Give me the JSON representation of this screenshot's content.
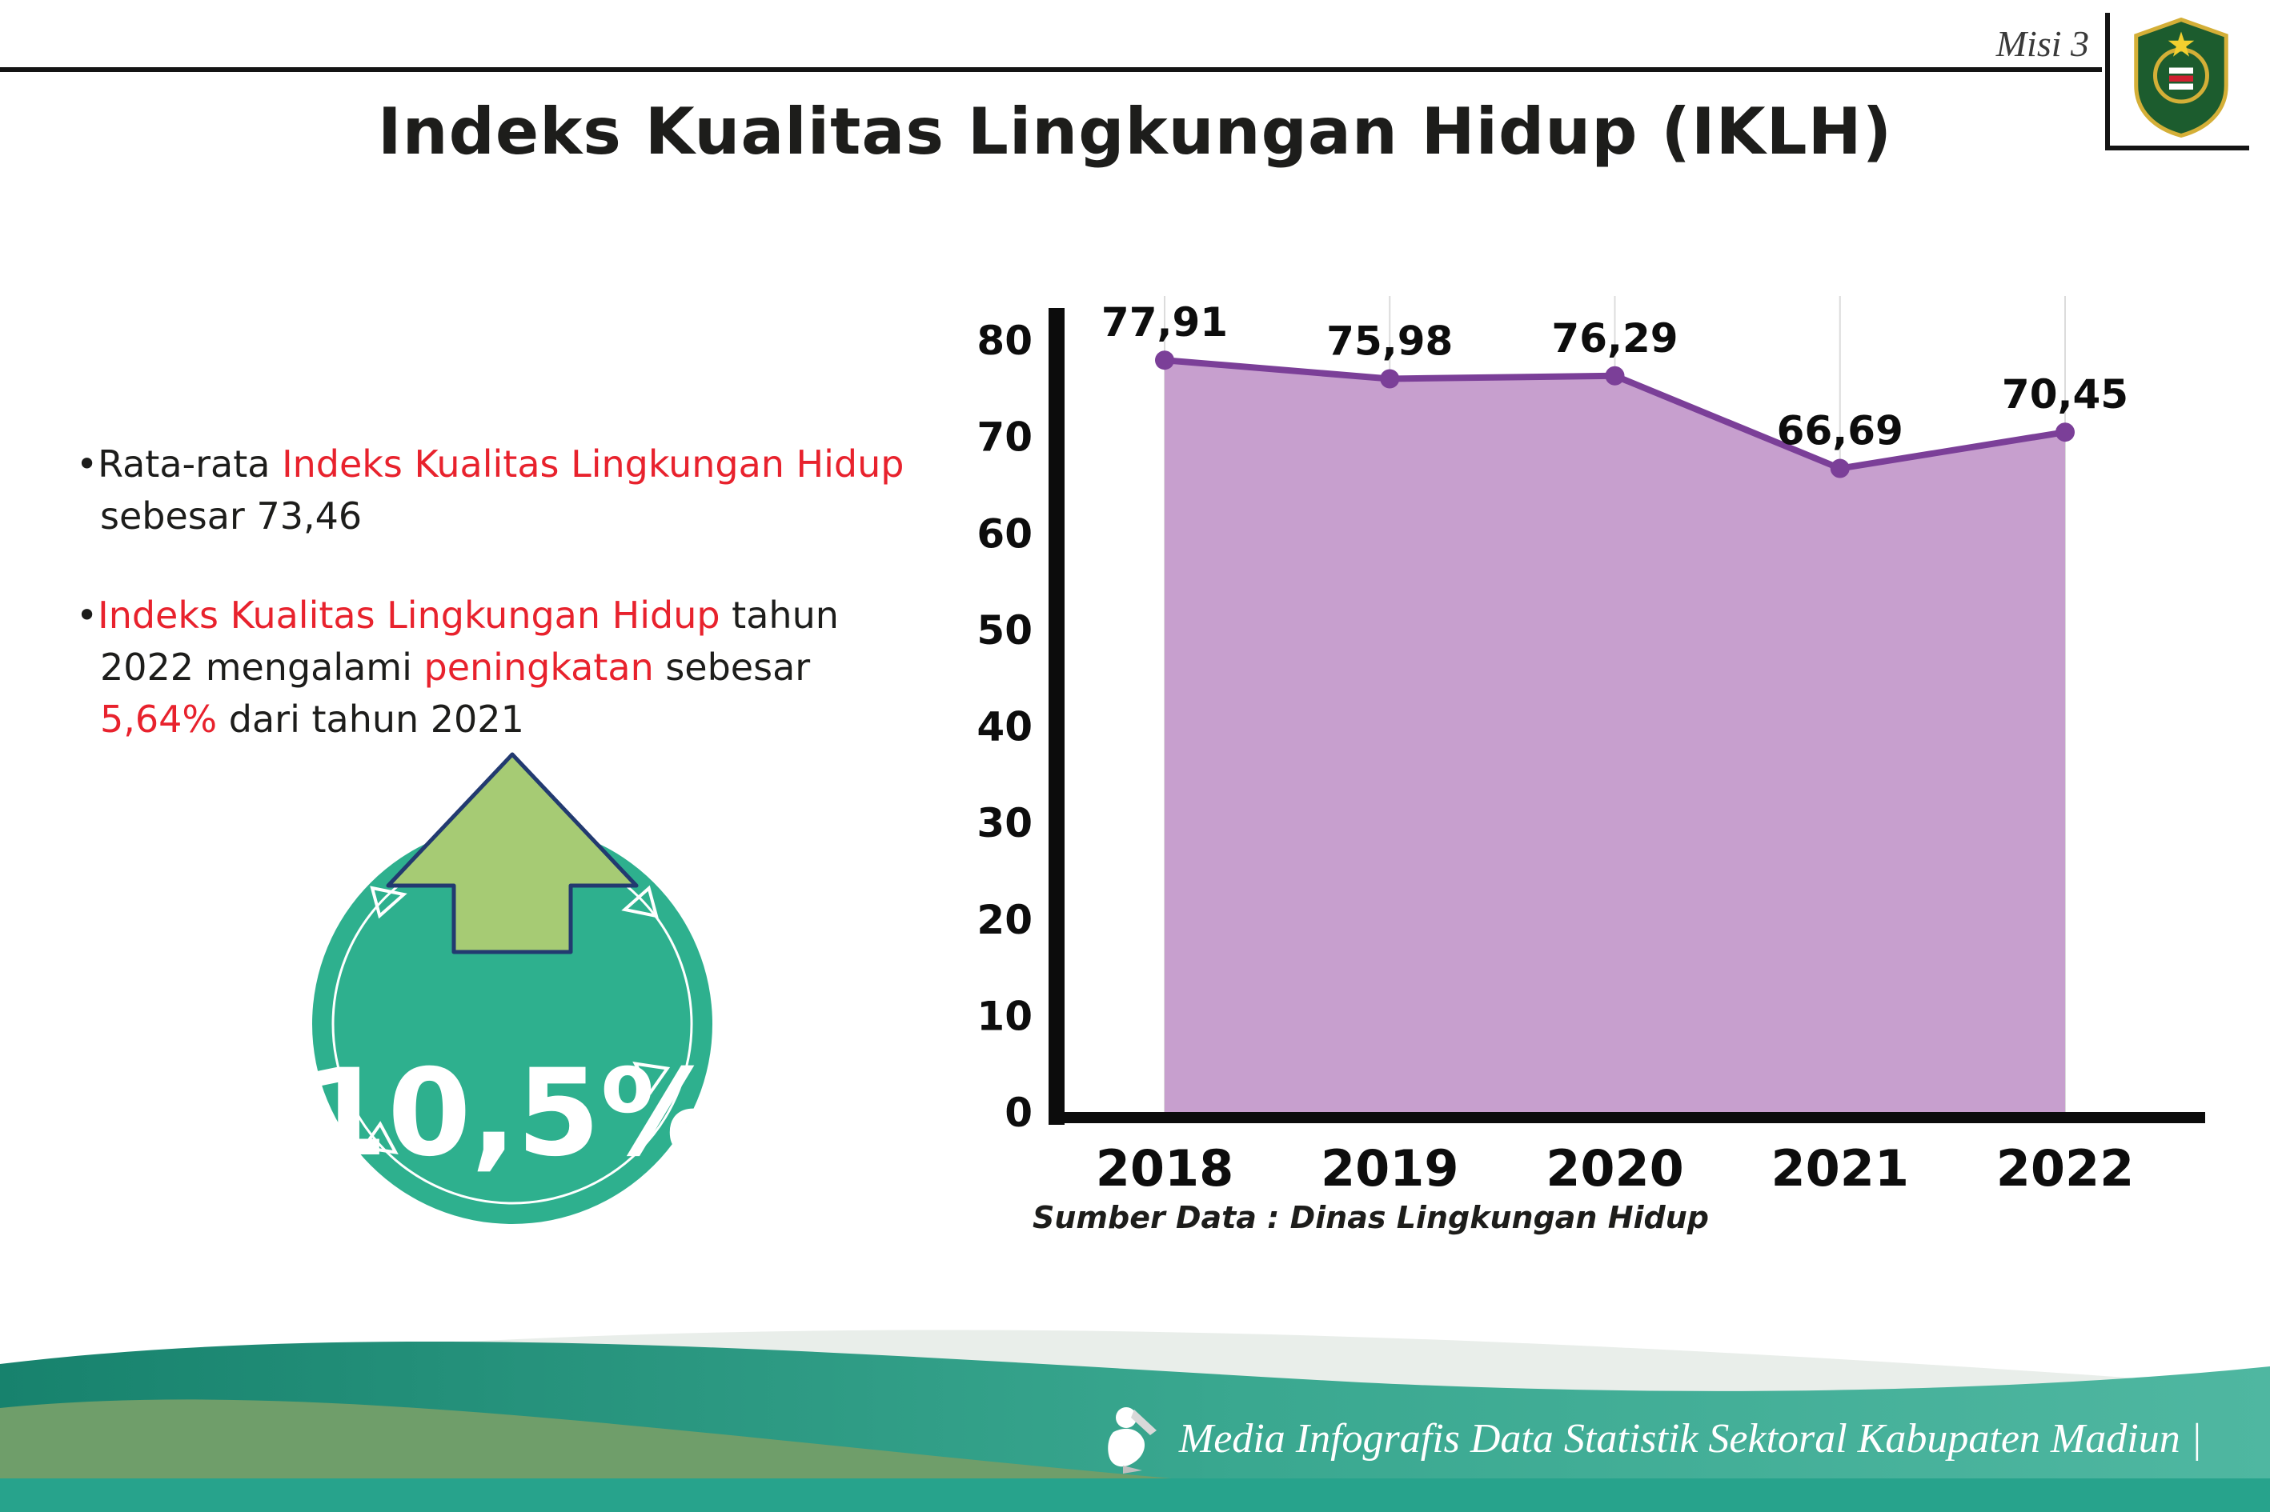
{
  "header": {
    "misi_label": "Misi 3",
    "title": "Indeks Kualitas Lingkungan Hidup (IKLH)",
    "emblem_label": "KABUPATEN MADIUN"
  },
  "bullets": {
    "b1": {
      "bullet": "•",
      "pre": "Rata-rata ",
      "highlight": "Indeks Kualitas Lingkungan Hidup",
      "post": " sebesar 73,46"
    },
    "b2": {
      "bullet": "•",
      "h1": "Indeks Kualitas Lingkungan Hidup",
      "t1": " tahun 2022 mengalami ",
      "h2": "peningkatan",
      "t2": " sebesar ",
      "h3": "5,64%",
      "t3": " dari tahun 2021"
    }
  },
  "badge": {
    "value": "10,5%"
  },
  "chart_data": {
    "type": "area",
    "categories": [
      "2018",
      "2019",
      "2020",
      "2021",
      "2022"
    ],
    "values": [
      77.91,
      75.98,
      76.29,
      66.69,
      70.45
    ],
    "value_labels": [
      "77,91",
      "75,98",
      "76,29",
      "66,69",
      "70,45"
    ],
    "ylim": [
      0,
      80
    ],
    "yticks": [
      0,
      10,
      20,
      30,
      40,
      50,
      60,
      70,
      80
    ],
    "grid": "vertical-light",
    "legend": "none",
    "fill_color": "#c79fce",
    "line_color": "#7b3f98",
    "source": "Sumber Data : Dinas Lingkungan Hidup"
  },
  "footer": {
    "caption": "Media Infografis Data Statistik Sektoral Kabupaten Madiun |"
  },
  "colors": {
    "accent_red": "#e8222d",
    "badge_teal": "#2eb08e",
    "arrow_green": "#a6cb74",
    "arrow_outline": "#223a70",
    "footer_teal_dark": "#17826d",
    "footer_teal_light": "#4fb7a1",
    "footer_sage": "#6f9e6a",
    "footer_bottom_bar": "#27a38c"
  }
}
